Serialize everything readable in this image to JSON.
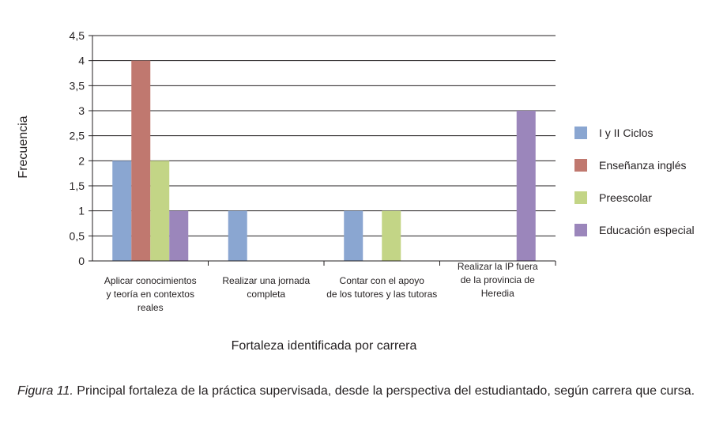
{
  "chart_data": {
    "type": "bar",
    "xlabel": "Fortaleza identificada por carrera",
    "ylabel": "Frecuencia",
    "ylim": [
      0,
      4.5
    ],
    "ytick_step": 0.5,
    "ytick_labels": [
      "0",
      "0,5",
      "1",
      "1,5",
      "2",
      "2,5",
      "3",
      "3,5",
      "4",
      "4,5"
    ],
    "categories": [
      [
        "Aplicar conocimientos",
        "y teoría en contextos",
        "reales"
      ],
      [
        "Realizar una jornada",
        "completa"
      ],
      [
        "Contar con el apoyo",
        "de los tutores y las tutoras"
      ],
      [
        "Realizar la IP fuera",
        "de la provincia de",
        "Heredia"
      ]
    ],
    "series": [
      {
        "name": "I y II Ciclos",
        "color": "#8aa6d1",
        "values": [
          2,
          1,
          1,
          0
        ]
      },
      {
        "name": "Enseñanza inglés",
        "color": "#c0786f",
        "values": [
          4,
          0,
          0,
          0
        ]
      },
      {
        "name": "Preescolar",
        "color": "#c3d586",
        "values": [
          2,
          0,
          1,
          0
        ]
      },
      {
        "name": "Educación especial",
        "color": "#9b86bb",
        "values": [
          1,
          0,
          0,
          3
        ]
      }
    ],
    "grid": true,
    "legend_position": "right"
  },
  "caption": {
    "figure_label": "Figura 11.",
    "text": " Principal fortaleza de la práctica supervisada, desde la perspectiva del estudiantado, según carrera que cursa."
  }
}
